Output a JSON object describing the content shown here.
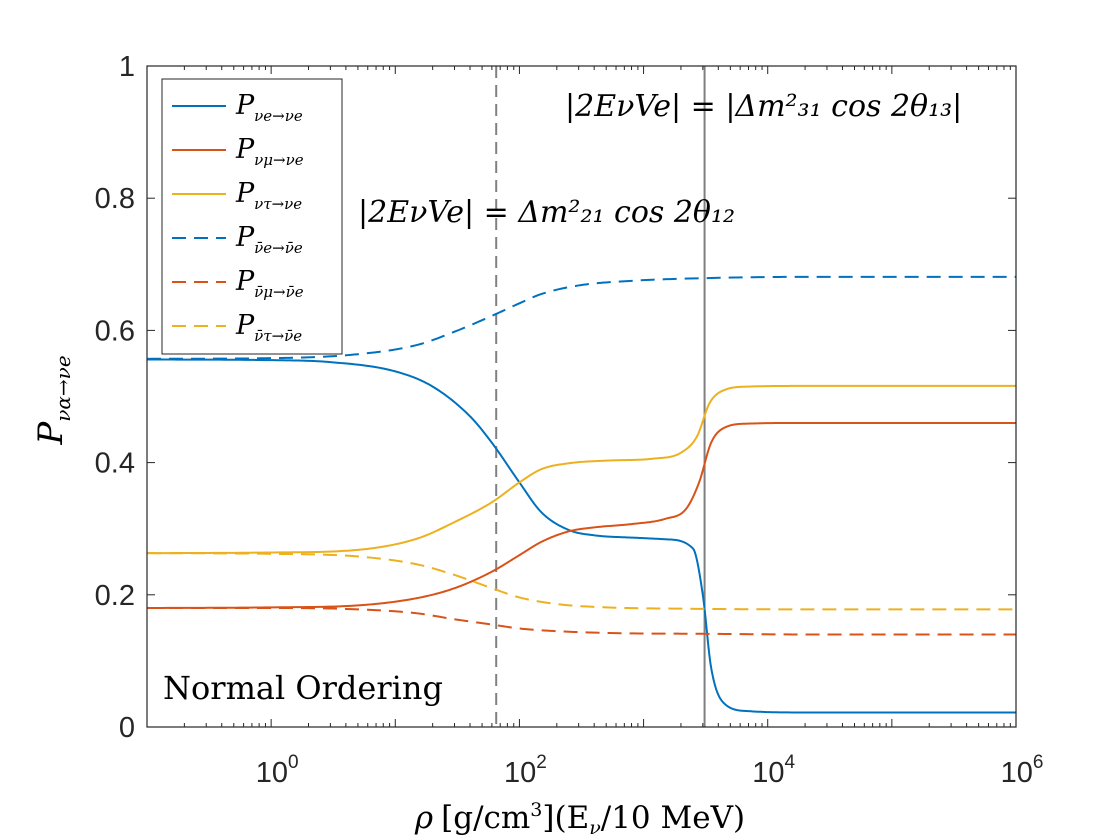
{
  "chart_data": {
    "type": "line",
    "title": "",
    "xscale": "log",
    "xlim": [
      0.1,
      1000000
    ],
    "ylim": [
      0,
      1
    ],
    "grid": false,
    "xlabel": {
      "rho": "ρ",
      "units": "[g/cm",
      "units_exp": "3",
      "units_close": "](E",
      "nu": "ν",
      "tail": "/10 MeV)"
    },
    "ylabel": {
      "main": "P",
      "sub": "να→νe"
    },
    "x_ticks": [
      {
        "value": 1,
        "base": "10",
        "exp": "0"
      },
      {
        "value": 100,
        "base": "10",
        "exp": "2"
      },
      {
        "value": 10000,
        "base": "10",
        "exp": "4"
      },
      {
        "value": 1000000,
        "base": "10",
        "exp": "6"
      }
    ],
    "y_ticks": [
      {
        "value": 0,
        "label": "0"
      },
      {
        "value": 0.2,
        "label": "0.2"
      },
      {
        "value": 0.4,
        "label": "0.4"
      },
      {
        "value": 0.6,
        "label": "0.6"
      },
      {
        "value": 0.8,
        "label": "0.8"
      },
      {
        "value": 1,
        "label": "1"
      }
    ],
    "legend_position": "top-left",
    "colors": {
      "blue": "#0072BD",
      "orange": "#D95319",
      "yellow": "#EDB120",
      "gray": "#808080",
      "axis": "#262626"
    },
    "series": [
      {
        "name": "Pνe→νe",
        "label_main": "P",
        "label_sub": "νe→νe",
        "color": "#0072BD",
        "dash": "solid",
        "points": [
          [
            0.1,
            0.556
          ],
          [
            1,
            0.555
          ],
          [
            3,
            0.552
          ],
          [
            10,
            0.538
          ],
          [
            20,
            0.515
          ],
          [
            40,
            0.47
          ],
          [
            60,
            0.43
          ],
          [
            100,
            0.37
          ],
          [
            150,
            0.325
          ],
          [
            250,
            0.298
          ],
          [
            400,
            0.29
          ],
          [
            700,
            0.287
          ],
          [
            1500,
            0.284
          ],
          [
            2500,
            0.27
          ],
          [
            3000,
            0.2
          ],
          [
            3500,
            0.09
          ],
          [
            4500,
            0.035
          ],
          [
            7000,
            0.024
          ],
          [
            20000,
            0.022
          ],
          [
            1000000,
            0.022
          ]
        ]
      },
      {
        "name": "Pνμ→νe",
        "label_main": "P",
        "label_sub": "νμ→νe",
        "color": "#D95319",
        "dash": "solid",
        "points": [
          [
            0.1,
            0.18
          ],
          [
            1,
            0.181
          ],
          [
            5,
            0.184
          ],
          [
            15,
            0.195
          ],
          [
            30,
            0.21
          ],
          [
            60,
            0.235
          ],
          [
            100,
            0.26
          ],
          [
            150,
            0.28
          ],
          [
            250,
            0.296
          ],
          [
            400,
            0.302
          ],
          [
            800,
            0.307
          ],
          [
            1500,
            0.315
          ],
          [
            2200,
            0.33
          ],
          [
            2800,
            0.37
          ],
          [
            3500,
            0.43
          ],
          [
            4500,
            0.453
          ],
          [
            7000,
            0.459
          ],
          [
            20000,
            0.46
          ],
          [
            1000000,
            0.46
          ]
        ]
      },
      {
        "name": "Pντ→νe",
        "label_main": "P",
        "label_sub": "ντ→νe",
        "color": "#EDB120",
        "dash": "solid",
        "points": [
          [
            0.1,
            0.263
          ],
          [
            1,
            0.264
          ],
          [
            5,
            0.268
          ],
          [
            15,
            0.285
          ],
          [
            30,
            0.31
          ],
          [
            60,
            0.34
          ],
          [
            100,
            0.37
          ],
          [
            150,
            0.39
          ],
          [
            250,
            0.399
          ],
          [
            500,
            0.403
          ],
          [
            1200,
            0.406
          ],
          [
            2000,
            0.415
          ],
          [
            2700,
            0.44
          ],
          [
            3400,
            0.49
          ],
          [
            4500,
            0.51
          ],
          [
            7000,
            0.515
          ],
          [
            20000,
            0.516
          ],
          [
            1000000,
            0.516
          ]
        ]
      },
      {
        "name": "Pν̄e→ν̄e",
        "label_main": "P",
        "label_sub": "ν̄e→ν̄e",
        "color": "#0072BD",
        "dash": "dashed",
        "points": [
          [
            0.1,
            0.557
          ],
          [
            1,
            0.558
          ],
          [
            5,
            0.564
          ],
          [
            15,
            0.578
          ],
          [
            30,
            0.598
          ],
          [
            60,
            0.622
          ],
          [
            100,
            0.641
          ],
          [
            150,
            0.655
          ],
          [
            300,
            0.668
          ],
          [
            800,
            0.675
          ],
          [
            3000,
            0.679
          ],
          [
            20000,
            0.681
          ],
          [
            1000000,
            0.681
          ]
        ]
      },
      {
        "name": "Pν̄μ→ν̄e",
        "label_main": "P",
        "label_sub": "ν̄μ→ν̄e",
        "color": "#D95319",
        "dash": "dashed",
        "points": [
          [
            0.1,
            0.18
          ],
          [
            1,
            0.18
          ],
          [
            5,
            0.178
          ],
          [
            15,
            0.172
          ],
          [
            30,
            0.163
          ],
          [
            60,
            0.155
          ],
          [
            100,
            0.149
          ],
          [
            200,
            0.145
          ],
          [
            600,
            0.142
          ],
          [
            3000,
            0.141
          ],
          [
            20000,
            0.14
          ],
          [
            1000000,
            0.14
          ]
        ]
      },
      {
        "name": "Pν̄τ→ν̄e",
        "label_main": "P",
        "label_sub": "ν̄τ→ν̄e",
        "color": "#EDB120",
        "dash": "dashed",
        "points": [
          [
            0.1,
            0.263
          ],
          [
            1,
            0.262
          ],
          [
            5,
            0.258
          ],
          [
            15,
            0.246
          ],
          [
            30,
            0.23
          ],
          [
            60,
            0.21
          ],
          [
            100,
            0.196
          ],
          [
            200,
            0.186
          ],
          [
            500,
            0.181
          ],
          [
            2000,
            0.179
          ],
          [
            20000,
            0.178
          ],
          [
            1000000,
            0.178
          ]
        ]
      }
    ],
    "vlines": [
      {
        "x": 65,
        "color": "#808080",
        "dash": "dashed"
      },
      {
        "x": 3100,
        "color": "#808080",
        "dash": "solid"
      }
    ],
    "annotations": {
      "resonance_12": "|2EνVe| = Δm²₂₁ cos 2θ₁₂",
      "resonance_13": "|2EνVe| = |Δm²₃₁ cos 2θ₁₃|",
      "ordering": "Normal Ordering"
    }
  }
}
